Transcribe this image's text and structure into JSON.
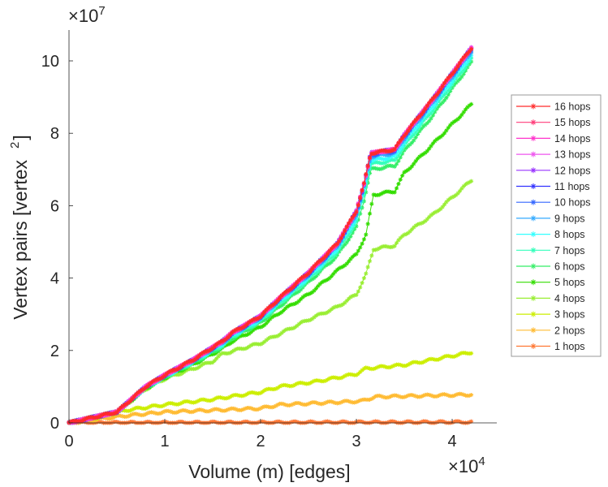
{
  "chart_data": {
    "type": "line",
    "title": "",
    "xlabel": "Volume (m) [edges]",
    "ylabel": "Vertex pairs [vertex",
    "ylabel_superscript": "2",
    "ylabel_close": "]",
    "x_multiplier": "×10",
    "x_multiplier_exp": "4",
    "y_multiplier": "×10",
    "y_multiplier_exp": "7",
    "xlim": [
      0,
      4.45
    ],
    "ylim": [
      0,
      10.85
    ],
    "xticks": [
      "0",
      "1",
      "2",
      "3",
      "4"
    ],
    "yticks": [
      "0",
      "2",
      "4",
      "6",
      "8",
      "10"
    ],
    "legend_position": "outside-right",
    "series": [
      {
        "name": "16 hops",
        "color": "#ff2a2a",
        "points": [
          [
            0,
            0
          ],
          [
            0.5,
            0.3
          ],
          [
            0.8,
            1.0
          ],
          [
            1,
            1.32
          ],
          [
            1.3,
            1.75
          ],
          [
            1.6,
            2.25
          ],
          [
            1.7,
            2.48
          ],
          [
            2,
            2.95
          ],
          [
            2.2,
            3.45
          ],
          [
            2.5,
            4.15
          ],
          [
            2.8,
            4.95
          ],
          [
            3.0,
            5.85
          ],
          [
            3.08,
            6.6
          ],
          [
            3.15,
            7.45
          ],
          [
            3.4,
            7.55
          ],
          [
            3.5,
            7.95
          ],
          [
            3.8,
            8.95
          ],
          [
            4.2,
            10.35
          ]
        ]
      },
      {
        "name": "15 hops",
        "color": "#ff3d7a",
        "points": [
          [
            0,
            0
          ],
          [
            0.5,
            0.3
          ],
          [
            0.8,
            1.0
          ],
          [
            1,
            1.32
          ],
          [
            1.3,
            1.75
          ],
          [
            1.6,
            2.25
          ],
          [
            1.7,
            2.48
          ],
          [
            2,
            2.95
          ],
          [
            2.2,
            3.45
          ],
          [
            2.5,
            4.15
          ],
          [
            2.8,
            4.95
          ],
          [
            3.0,
            5.85
          ],
          [
            3.08,
            6.6
          ],
          [
            3.15,
            7.45
          ],
          [
            3.4,
            7.55
          ],
          [
            3.5,
            7.95
          ],
          [
            3.8,
            8.95
          ],
          [
            4.2,
            10.35
          ]
        ]
      },
      {
        "name": "14 hops",
        "color": "#ff33cc",
        "points": [
          [
            0,
            0
          ],
          [
            0.5,
            0.3
          ],
          [
            0.8,
            1.0
          ],
          [
            1,
            1.32
          ],
          [
            1.3,
            1.75
          ],
          [
            1.6,
            2.25
          ],
          [
            1.7,
            2.48
          ],
          [
            2,
            2.95
          ],
          [
            2.2,
            3.45
          ],
          [
            2.5,
            4.15
          ],
          [
            2.8,
            4.95
          ],
          [
            3.0,
            5.85
          ],
          [
            3.08,
            6.6
          ],
          [
            3.15,
            7.45
          ],
          [
            3.4,
            7.55
          ],
          [
            3.5,
            7.95
          ],
          [
            3.8,
            8.95
          ],
          [
            4.2,
            10.35
          ]
        ]
      },
      {
        "name": "13 hops",
        "color": "#ee55ee",
        "points": [
          [
            0,
            0
          ],
          [
            0.5,
            0.3
          ],
          [
            0.8,
            1.0
          ],
          [
            1,
            1.32
          ],
          [
            1.3,
            1.75
          ],
          [
            1.6,
            2.25
          ],
          [
            1.7,
            2.48
          ],
          [
            2,
            2.95
          ],
          [
            2.2,
            3.45
          ],
          [
            2.5,
            4.15
          ],
          [
            2.8,
            4.95
          ],
          [
            3.0,
            5.85
          ],
          [
            3.08,
            6.6
          ],
          [
            3.15,
            7.45
          ],
          [
            3.4,
            7.55
          ],
          [
            3.5,
            7.95
          ],
          [
            3.8,
            8.95
          ],
          [
            4.2,
            10.35
          ]
        ]
      },
      {
        "name": "12 hops",
        "color": "#9933ff",
        "points": [
          [
            0,
            0
          ],
          [
            0.5,
            0.3
          ],
          [
            0.8,
            1.0
          ],
          [
            1,
            1.32
          ],
          [
            1.3,
            1.75
          ],
          [
            1.6,
            2.25
          ],
          [
            1.7,
            2.48
          ],
          [
            2,
            2.95
          ],
          [
            2.2,
            3.45
          ],
          [
            2.5,
            4.15
          ],
          [
            2.8,
            4.95
          ],
          [
            3.0,
            5.85
          ],
          [
            3.08,
            6.6
          ],
          [
            3.15,
            7.45
          ],
          [
            3.4,
            7.55
          ],
          [
            3.5,
            7.95
          ],
          [
            3.8,
            8.95
          ],
          [
            4.2,
            10.35
          ]
        ]
      },
      {
        "name": "11 hops",
        "color": "#3333ff",
        "points": [
          [
            0,
            0
          ],
          [
            0.5,
            0.3
          ],
          [
            0.8,
            1.0
          ],
          [
            1,
            1.32
          ],
          [
            1.3,
            1.75
          ],
          [
            1.6,
            2.25
          ],
          [
            1.7,
            2.48
          ],
          [
            2,
            2.95
          ],
          [
            2.2,
            3.45
          ],
          [
            2.5,
            4.15
          ],
          [
            2.8,
            4.95
          ],
          [
            3.0,
            5.85
          ],
          [
            3.08,
            6.6
          ],
          [
            3.15,
            7.45
          ],
          [
            3.4,
            7.55
          ],
          [
            3.5,
            7.95
          ],
          [
            3.8,
            8.95
          ],
          [
            4.2,
            10.35
          ]
        ]
      },
      {
        "name": "10 hops",
        "color": "#3366ff",
        "points": [
          [
            0,
            0
          ],
          [
            0.5,
            0.3
          ],
          [
            0.8,
            1.0
          ],
          [
            1,
            1.3
          ],
          [
            1.3,
            1.73
          ],
          [
            1.6,
            2.22
          ],
          [
            1.7,
            2.45
          ],
          [
            2,
            2.92
          ],
          [
            2.2,
            3.42
          ],
          [
            2.5,
            4.1
          ],
          [
            2.8,
            4.9
          ],
          [
            3.0,
            5.8
          ],
          [
            3.08,
            6.55
          ],
          [
            3.15,
            7.4
          ],
          [
            3.4,
            7.5
          ],
          [
            3.5,
            7.9
          ],
          [
            3.8,
            8.9
          ],
          [
            4.2,
            10.3
          ]
        ]
      },
      {
        "name": "9 hops",
        "color": "#33aaff",
        "points": [
          [
            0,
            0
          ],
          [
            0.5,
            0.3
          ],
          [
            0.8,
            1.0
          ],
          [
            1,
            1.3
          ],
          [
            1.3,
            1.72
          ],
          [
            1.6,
            2.2
          ],
          [
            1.7,
            2.43
          ],
          [
            2,
            2.9
          ],
          [
            2.2,
            3.4
          ],
          [
            2.5,
            4.08
          ],
          [
            2.8,
            4.87
          ],
          [
            3.0,
            5.75
          ],
          [
            3.08,
            6.5
          ],
          [
            3.15,
            7.35
          ],
          [
            3.4,
            7.45
          ],
          [
            3.5,
            7.85
          ],
          [
            3.8,
            8.85
          ],
          [
            4.2,
            10.25
          ]
        ]
      },
      {
        "name": "8 hops",
        "color": "#33ffff",
        "points": [
          [
            0,
            0
          ],
          [
            0.5,
            0.3
          ],
          [
            0.8,
            0.98
          ],
          [
            1,
            1.28
          ],
          [
            1.3,
            1.7
          ],
          [
            1.6,
            2.17
          ],
          [
            1.7,
            2.4
          ],
          [
            2,
            2.86
          ],
          [
            2.2,
            3.35
          ],
          [
            2.5,
            4.02
          ],
          [
            2.8,
            4.8
          ],
          [
            3.0,
            5.65
          ],
          [
            3.08,
            6.4
          ],
          [
            3.15,
            7.25
          ],
          [
            3.4,
            7.35
          ],
          [
            3.5,
            7.75
          ],
          [
            3.8,
            8.75
          ],
          [
            4.2,
            10.15
          ]
        ]
      },
      {
        "name": "7 hops",
        "color": "#33ffbb",
        "points": [
          [
            0,
            0
          ],
          [
            0.5,
            0.3
          ],
          [
            0.8,
            0.97
          ],
          [
            1,
            1.27
          ],
          [
            1.3,
            1.68
          ],
          [
            1.6,
            2.14
          ],
          [
            1.7,
            2.37
          ],
          [
            2,
            2.82
          ],
          [
            2.2,
            3.3
          ],
          [
            2.5,
            3.96
          ],
          [
            2.8,
            4.72
          ],
          [
            3.0,
            5.55
          ],
          [
            3.08,
            6.3
          ],
          [
            3.15,
            7.15
          ],
          [
            3.4,
            7.25
          ],
          [
            3.5,
            7.65
          ],
          [
            3.8,
            8.65
          ],
          [
            4.2,
            10.05
          ]
        ]
      },
      {
        "name": "6 hops",
        "color": "#33ee66",
        "points": [
          [
            0,
            0
          ],
          [
            0.5,
            0.3
          ],
          [
            0.8,
            0.96
          ],
          [
            1,
            1.26
          ],
          [
            1.3,
            1.66
          ],
          [
            1.6,
            2.1
          ],
          [
            1.7,
            2.33
          ],
          [
            2,
            2.77
          ],
          [
            2.2,
            3.22
          ],
          [
            2.5,
            3.88
          ],
          [
            2.8,
            4.62
          ],
          [
            3.0,
            5.4
          ],
          [
            3.08,
            6.15
          ],
          [
            3.15,
            7.0
          ],
          [
            3.4,
            7.1
          ],
          [
            3.5,
            7.5
          ],
          [
            3.8,
            8.5
          ],
          [
            4.2,
            9.95
          ]
        ]
      },
      {
        "name": "5 hops",
        "color": "#33dd00",
        "points": [
          [
            0,
            0
          ],
          [
            0.5,
            0.3
          ],
          [
            0.8,
            0.95
          ],
          [
            1,
            1.25
          ],
          [
            1.3,
            1.62
          ],
          [
            1.6,
            2.05
          ],
          [
            1.7,
            2.25
          ],
          [
            2,
            2.65
          ],
          [
            2.2,
            3.05
          ],
          [
            2.5,
            3.55
          ],
          [
            2.8,
            4.2
          ],
          [
            3.0,
            4.65
          ],
          [
            3.1,
            5.2
          ],
          [
            3.18,
            6.3
          ],
          [
            3.4,
            6.4
          ],
          [
            3.5,
            6.9
          ],
          [
            3.8,
            7.7
          ],
          [
            4.2,
            8.8
          ]
        ]
      },
      {
        "name": "4 hops",
        "color": "#99ee33",
        "points": [
          [
            0,
            0
          ],
          [
            0.5,
            0.3
          ],
          [
            0.8,
            0.93
          ],
          [
            1,
            1.22
          ],
          [
            1.3,
            1.5
          ],
          [
            1.5,
            1.7
          ],
          [
            1.6,
            1.9
          ],
          [
            2,
            2.2
          ],
          [
            2.5,
            2.85
          ],
          [
            2.8,
            3.2
          ],
          [
            3.0,
            3.55
          ],
          [
            3.1,
            4.1
          ],
          [
            3.18,
            4.8
          ],
          [
            3.4,
            4.9
          ],
          [
            3.5,
            5.2
          ],
          [
            3.8,
            5.75
          ],
          [
            4.2,
            6.7
          ]
        ]
      },
      {
        "name": "3 hops",
        "color": "#ccee00",
        "points": [
          [
            0,
            0
          ],
          [
            0.3,
            0.15
          ],
          [
            0.6,
            0.35
          ],
          [
            1,
            0.5
          ],
          [
            1.5,
            0.65
          ],
          [
            2,
            0.85
          ],
          [
            2.2,
            1.0
          ],
          [
            2.6,
            1.15
          ],
          [
            3,
            1.35
          ],
          [
            3.1,
            1.5
          ],
          [
            3.5,
            1.6
          ],
          [
            4.2,
            1.95
          ]
        ]
      },
      {
        "name": "2 hops",
        "color": "#ffbb33",
        "points": [
          [
            0,
            0
          ],
          [
            0.3,
            0.1
          ],
          [
            0.6,
            0.2
          ],
          [
            1,
            0.3
          ],
          [
            1.5,
            0.35
          ],
          [
            2,
            0.4
          ],
          [
            2.2,
            0.5
          ],
          [
            3.05,
            0.6
          ],
          [
            3.2,
            0.72
          ],
          [
            4.2,
            0.78
          ]
        ]
      },
      {
        "name": "1 hops",
        "color": "#ff7733",
        "points": [
          [
            0,
            0
          ],
          [
            4.2,
            0.02
          ]
        ]
      }
    ]
  }
}
